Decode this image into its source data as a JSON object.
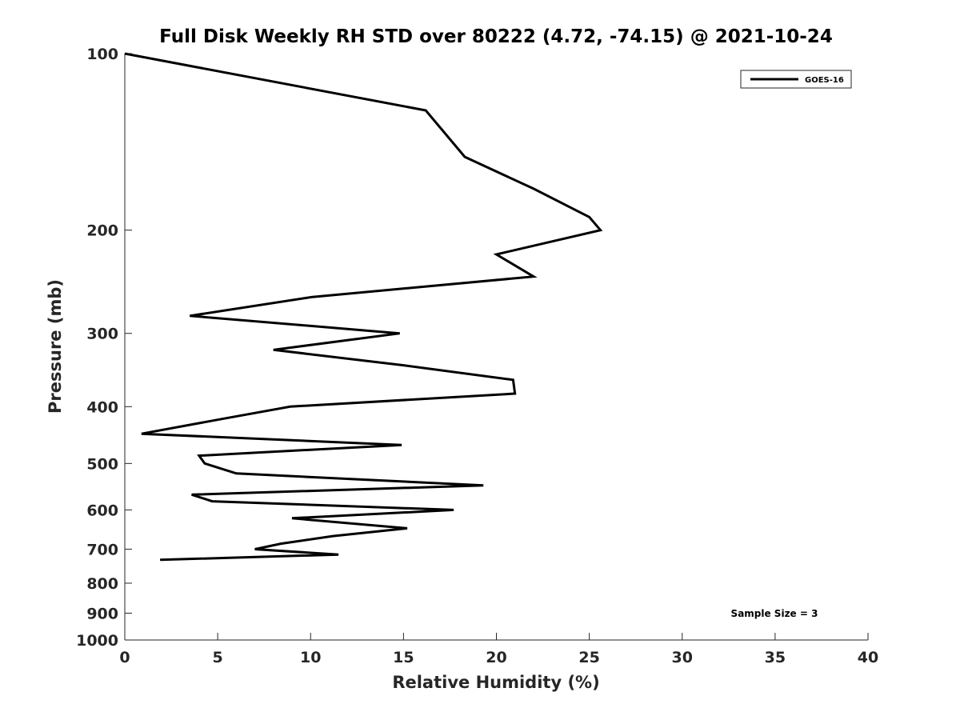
{
  "chart_data": {
    "type": "line",
    "title": "Full Disk Weekly RH STD over 80222 (4.72, -74.15) @ 2021-10-24",
    "xlabel": "Relative Humidity (%)",
    "ylabel": "Pressure (mb)",
    "xlim": [
      0,
      40
    ],
    "ylim": [
      100,
      1000
    ],
    "y_scale": "log",
    "y_reversed": true,
    "grid": false,
    "x_ticks": [
      0,
      5,
      10,
      15,
      20,
      25,
      30,
      35,
      40
    ],
    "x_tick_labels": [
      "0",
      "5",
      "10",
      "15",
      "20",
      "25",
      "30",
      "35",
      "40"
    ],
    "y_ticks": [
      100,
      200,
      300,
      400,
      500,
      600,
      700,
      800,
      900,
      1000
    ],
    "y_tick_labels": [
      "100",
      "200",
      "300",
      "400",
      "500",
      "600",
      "700",
      "800",
      "900",
      "1000"
    ],
    "legend": {
      "position": "top-right",
      "entries": [
        "GOES-16"
      ]
    },
    "annotation": "Sample Size = 3",
    "series": [
      {
        "name": "GOES-16",
        "color": "#000000",
        "points": [
          {
            "x": 0.0,
            "p": 100
          },
          {
            "x": 16.2,
            "p": 125
          },
          {
            "x": 18.3,
            "p": 150
          },
          {
            "x": 22.0,
            "p": 170
          },
          {
            "x": 25.0,
            "p": 190
          },
          {
            "x": 25.6,
            "p": 200
          },
          {
            "x": 20.0,
            "p": 220
          },
          {
            "x": 22.0,
            "p": 240
          },
          {
            "x": 10.1,
            "p": 260
          },
          {
            "x": 3.5,
            "p": 280
          },
          {
            "x": 14.8,
            "p": 300
          },
          {
            "x": 8.0,
            "p": 320
          },
          {
            "x": 15.0,
            "p": 340
          },
          {
            "x": 20.9,
            "p": 360
          },
          {
            "x": 21.0,
            "p": 380
          },
          {
            "x": 8.9,
            "p": 400
          },
          {
            "x": 5.2,
            "p": 420
          },
          {
            "x": 0.9,
            "p": 445
          },
          {
            "x": 14.9,
            "p": 465
          },
          {
            "x": 4.0,
            "p": 485
          },
          {
            "x": 4.3,
            "p": 500
          },
          {
            "x": 6.0,
            "p": 520
          },
          {
            "x": 19.3,
            "p": 545
          },
          {
            "x": 3.6,
            "p": 565
          },
          {
            "x": 4.7,
            "p": 580
          },
          {
            "x": 17.7,
            "p": 600
          },
          {
            "x": 9.0,
            "p": 620
          },
          {
            "x": 15.2,
            "p": 645
          },
          {
            "x": 11.2,
            "p": 665
          },
          {
            "x": 8.4,
            "p": 685
          },
          {
            "x": 7.0,
            "p": 700
          },
          {
            "x": 11.5,
            "p": 715
          },
          {
            "x": 1.9,
            "p": 730
          }
        ]
      }
    ]
  }
}
